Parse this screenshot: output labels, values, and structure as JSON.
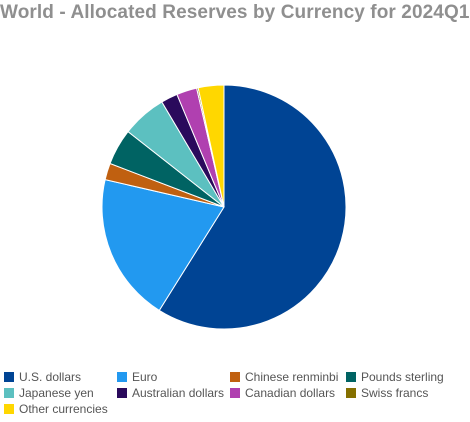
{
  "chart_data": {
    "type": "pie",
    "title": "World - Allocated Reserves by Currency for 2024Q1",
    "legend_position": "bottom",
    "slices": [
      {
        "label": "U.S. dollars",
        "value": 58.9,
        "color": "#004494"
      },
      {
        "label": "Euro",
        "value": 19.7,
        "color": "#2299f0"
      },
      {
        "label": "Chinese renminbi",
        "value": 2.2,
        "color": "#c06010"
      },
      {
        "label": "Pounds sterling",
        "value": 4.8,
        "color": "#006363"
      },
      {
        "label": "Japanese yen",
        "value": 5.9,
        "color": "#5cc0c0"
      },
      {
        "label": "Australian dollars",
        "value": 2.2,
        "color": "#2a0a5c"
      },
      {
        "label": "Canadian dollars",
        "value": 2.7,
        "color": "#b040b0"
      },
      {
        "label": "Swiss francs",
        "value": 0.2,
        "color": "#857000"
      },
      {
        "label": "Other currencies",
        "value": 3.4,
        "color": "#ffd700"
      }
    ]
  }
}
